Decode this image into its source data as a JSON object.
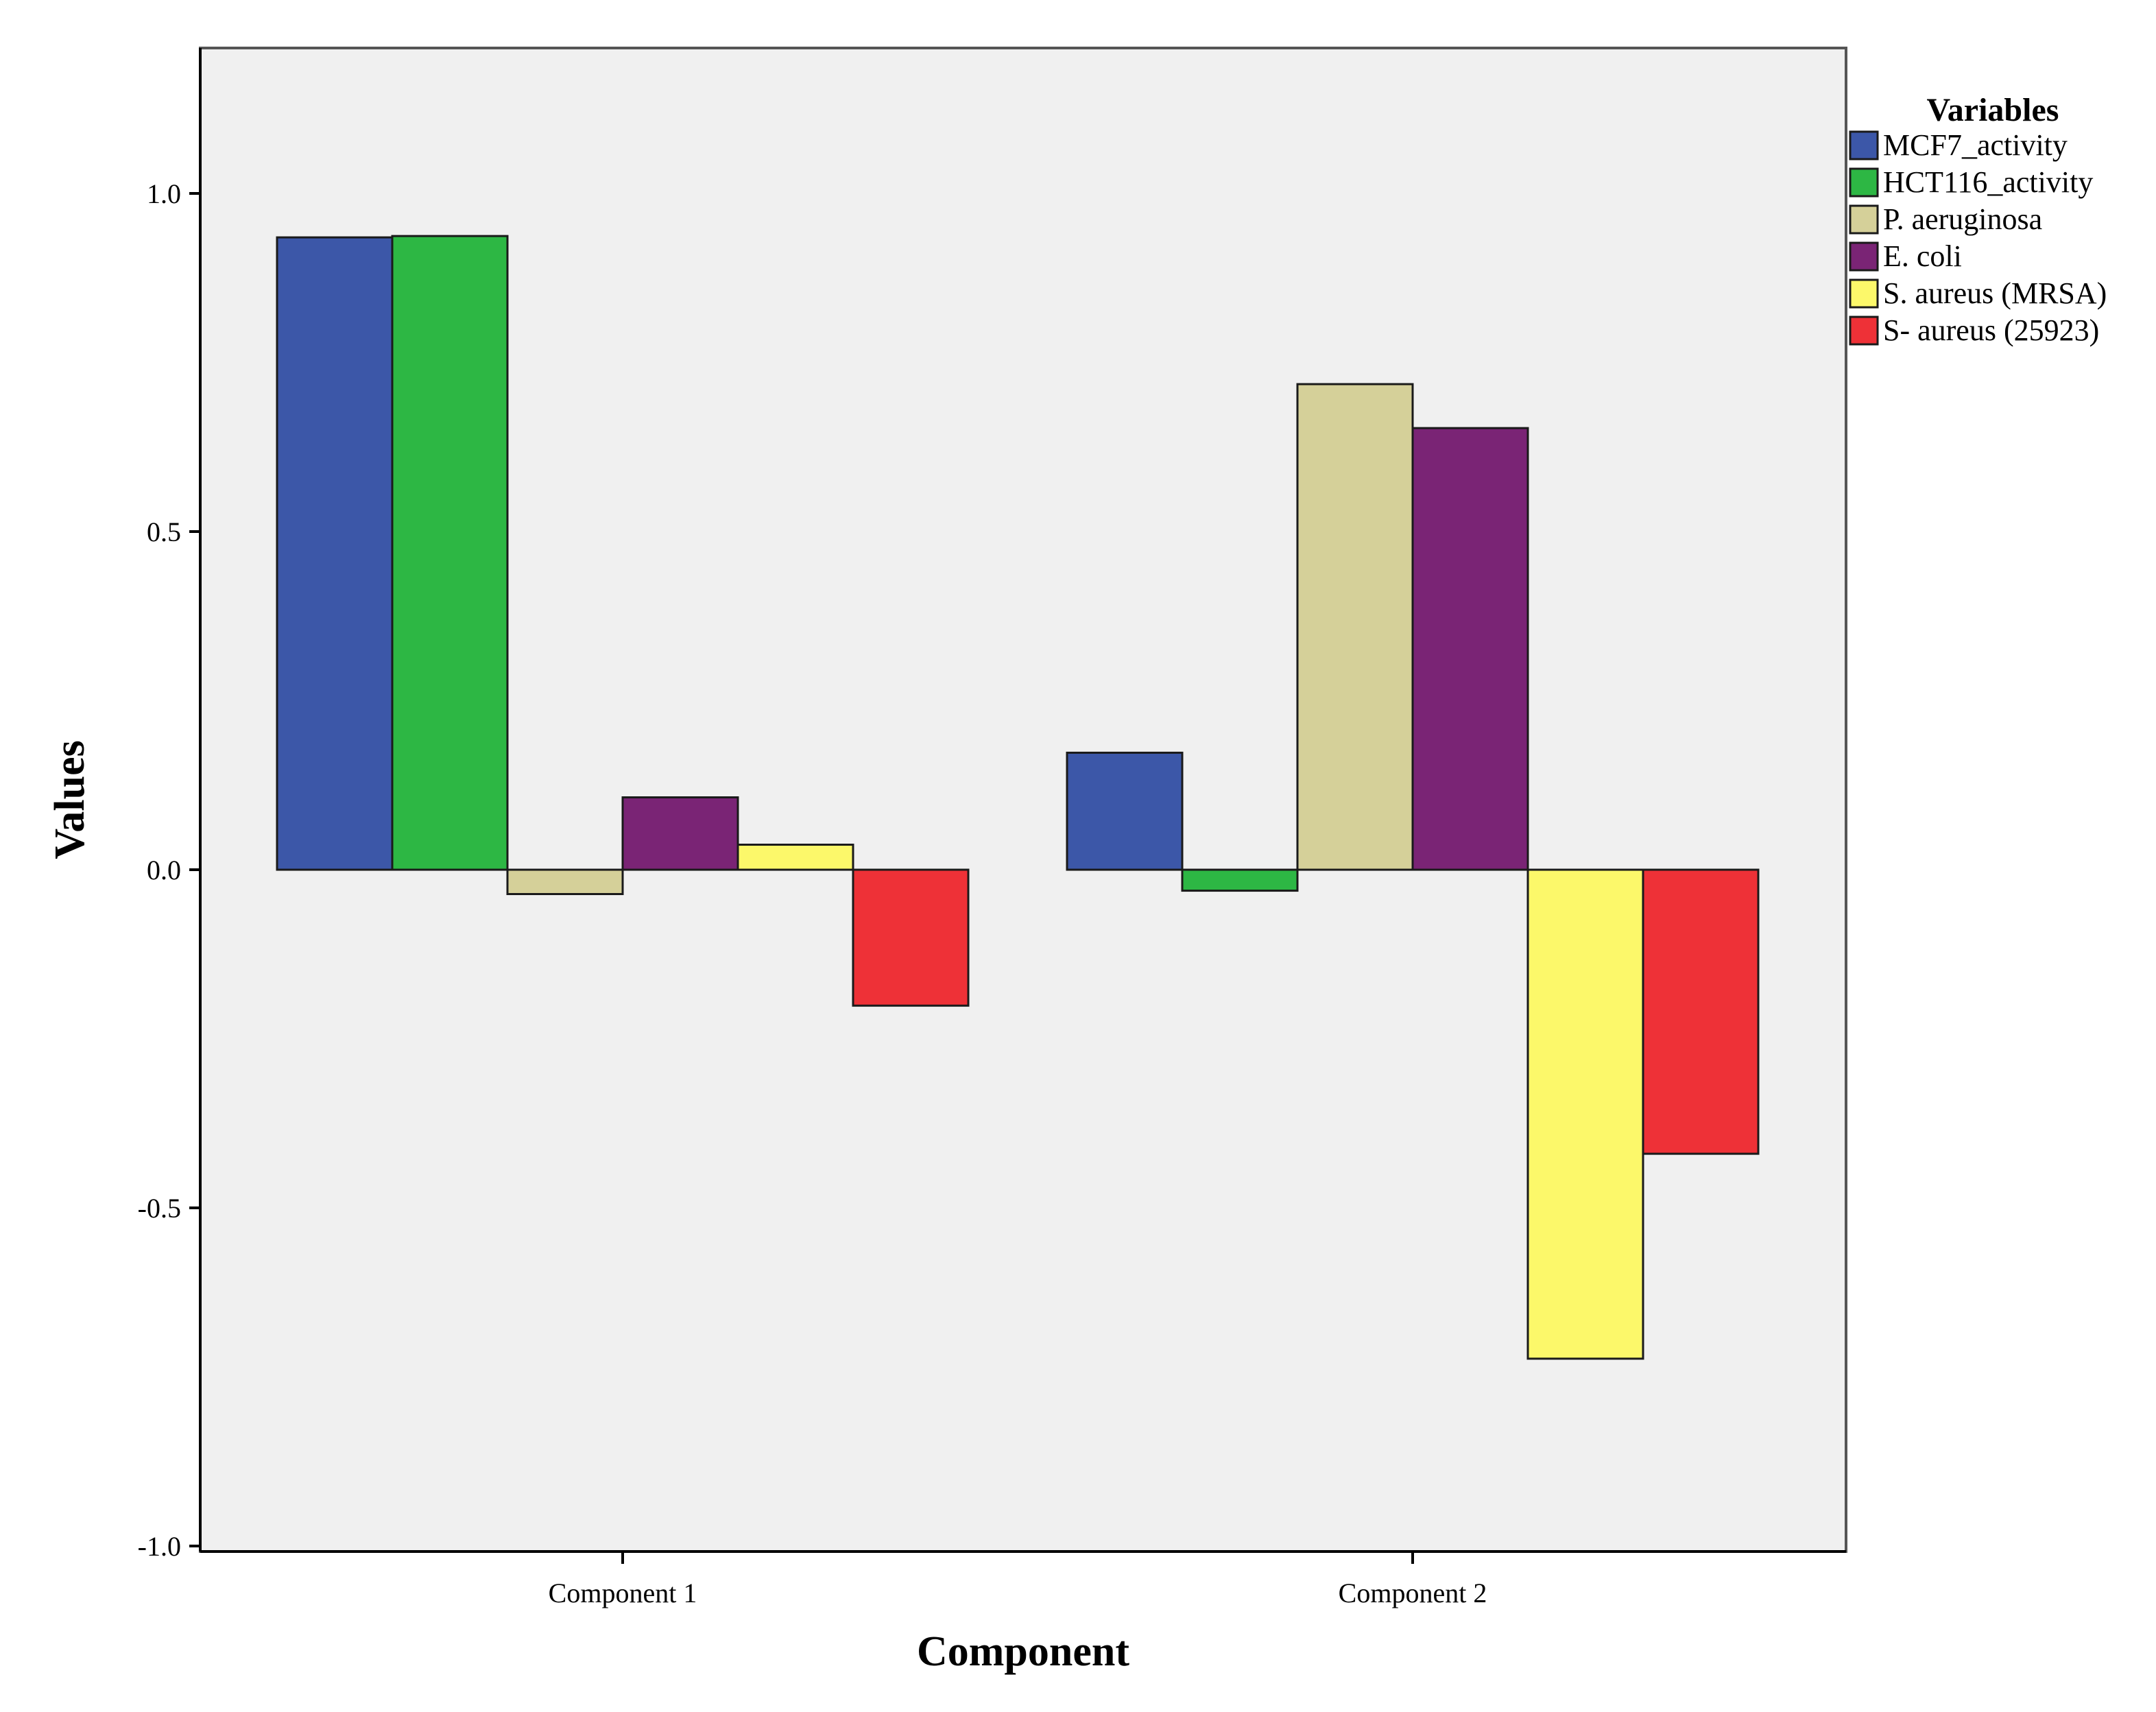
{
  "chart_data": {
    "type": "bar",
    "title": "",
    "xlabel": "Component",
    "ylabel": "Values",
    "categories": [
      "Component 1",
      "Component 2"
    ],
    "ylim": [
      -1.0,
      1.2
    ],
    "yticks": [
      -1.0,
      -0.5,
      0.0,
      0.5,
      1.0
    ],
    "ytick_labels": [
      "-1.0",
      "-0.5",
      "0.0",
      "0.5",
      "1.0"
    ],
    "grid": false,
    "legend": {
      "title": "Variables",
      "position": "right"
    },
    "series": [
      {
        "name": "MCF7_activity",
        "color": "#3C57A8",
        "values": [
          0.935,
          0.173
        ]
      },
      {
        "name": "HCT116_activity",
        "color": "#2DB744",
        "values": [
          0.937,
          -0.031
        ]
      },
      {
        "name": "P. aeruginosa",
        "color": "#D5D099",
        "values": [
          -0.036,
          0.718
        ]
      },
      {
        "name": "E. coli",
        "color": "#7A2475",
        "values": [
          0.107,
          0.653
        ]
      },
      {
        "name": "S. aureus (MRSA)",
        "color": "#FCF86A",
        "values": [
          0.037,
          -0.723
        ]
      },
      {
        "name": "S- aureus (25923)",
        "color": "#EE3137",
        "values": [
          -0.201,
          -0.42
        ]
      }
    ]
  }
}
